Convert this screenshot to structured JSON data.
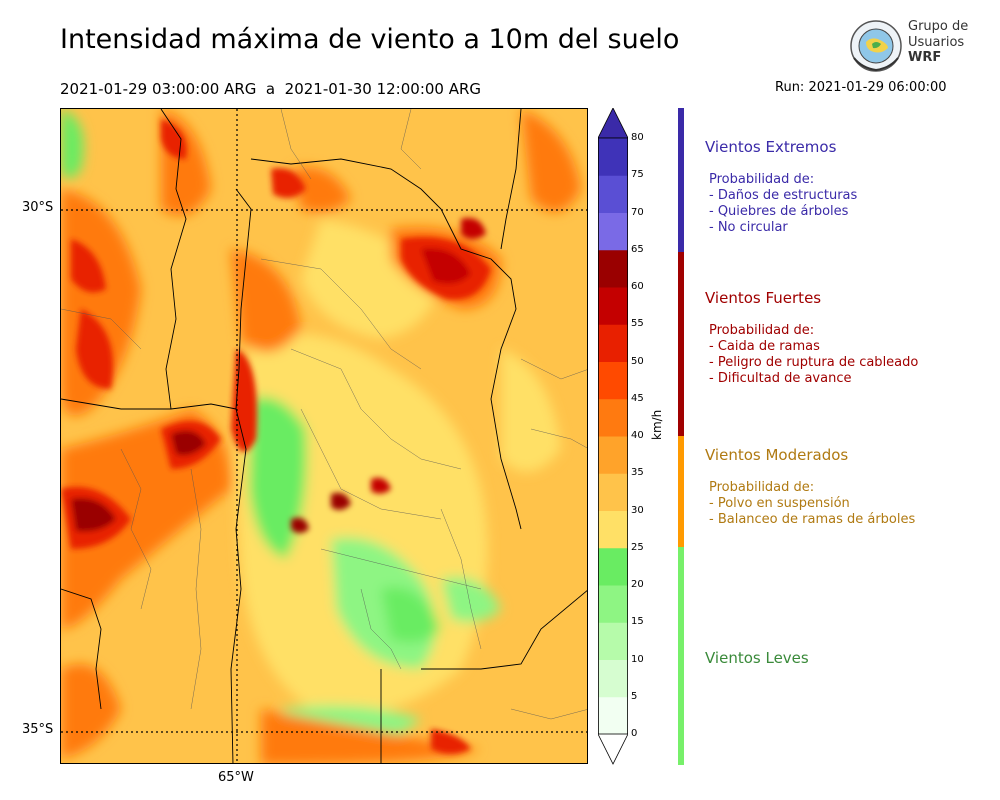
{
  "header": {
    "title": "Intensidad máxima de viento a 10m del suelo",
    "period": "2021-01-29 03:00:00 ARG  a  2021-01-30 12:00:00 ARG",
    "run": "Run: 2021-01-29 06:00:00"
  },
  "logo": {
    "line1": "Grupo de",
    "line2": "Usuarios",
    "line3": "WRF"
  },
  "map": {
    "lat_labels": [
      "30°S",
      "35°S"
    ],
    "lon_labels": [
      "65°W"
    ]
  },
  "colorbar": {
    "unit": "km/h",
    "ticks": [
      "0",
      "5",
      "10",
      "15",
      "20",
      "25",
      "30",
      "35",
      "40",
      "45",
      "50",
      "55",
      "60",
      "65",
      "70",
      "75",
      "80"
    ],
    "colors": [
      "#f2fff2",
      "#d6fdd0",
      "#b6fbaa",
      "#8ef583",
      "#69ec62",
      "#ffe066",
      "#ffc34a",
      "#ffa32a",
      "#ff7a10",
      "#ff4a00",
      "#e82000",
      "#c40000",
      "#9a0000",
      "#7a6ae6",
      "#5a4fd4",
      "#3f33b8"
    ],
    "over_color": "#3a2aa8",
    "under_color": "#ffffff"
  },
  "categories": [
    {
      "title": "Vientos Extremos",
      "color": "#3a2aa8",
      "lines": [
        "Probabilidad de:",
        "- Daños de estructuras",
        "- Quiebres de árboles",
        "- No circular"
      ]
    },
    {
      "title": "Vientos Fuertes",
      "color": "#a00000",
      "lines": [
        "Probabilidad de:",
        "- Caida de ramas",
        "- Peligro de ruptura de cableado",
        "- Dificultad de avance"
      ]
    },
    {
      "title": "Vientos Moderados",
      "color": "#b07a12",
      "lines": [
        "Probabilidad de:",
        "- Polvo en suspensión",
        "- Balanceo de ramas de árboles"
      ]
    },
    {
      "title": "Vientos Leves",
      "color": "#3a8a3a",
      "lines": []
    }
  ],
  "category_bar_colors": [
    "#3a2aa8",
    "#a00000",
    "#ff9a00",
    "#77f06a"
  ]
}
